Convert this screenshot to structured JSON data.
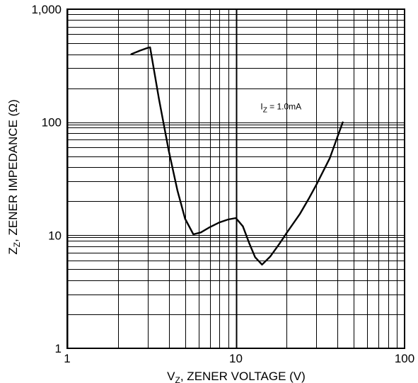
{
  "chart_data": {
    "type": "line",
    "x_scale": "log",
    "y_scale": "log",
    "xlim": [
      1,
      100
    ],
    "ylim": [
      1,
      1000
    ],
    "grid": true,
    "x_ticks": [
      {
        "value": 1,
        "label": "1"
      },
      {
        "value": 10,
        "label": "10"
      },
      {
        "value": 100,
        "label": "100"
      }
    ],
    "y_ticks": [
      {
        "value": 1,
        "label": "1"
      },
      {
        "value": 10,
        "label": "10"
      },
      {
        "value": 100,
        "label": "100"
      },
      {
        "value": 1000,
        "label": "1,000"
      }
    ],
    "xlabel": {
      "pre": "V",
      "sub": "Z",
      "post": ", ZENER VOLTAGE (V)"
    },
    "ylabel": {
      "pre": "Z",
      "sub": "Z",
      "post": ", ZENER IMPEDANCE (Ω)"
    },
    "annotation": {
      "pre": "I",
      "sub": "Z",
      "post": " = 1.0mA",
      "x": 14,
      "y": 130
    },
    "series": [
      {
        "x": [
          2.4,
          2.7,
          3.0,
          3.1,
          3.5,
          4.0,
          4.5,
          5.0,
          5.6,
          6.2,
          7.0,
          8.0,
          9.0,
          10.0,
          11.0,
          12.0,
          13.0,
          14.3,
          16.0,
          18.0,
          20.0,
          24.0,
          27.0,
          30.0,
          36.0,
          43.0
        ],
        "y": [
          400,
          430,
          455,
          460,
          160,
          56,
          25,
          14,
          10.2,
          10.6,
          11.8,
          13.0,
          13.8,
          14.2,
          12.0,
          8.5,
          6.4,
          5.5,
          6.5,
          8.3,
          10.5,
          15.5,
          21.0,
          28.0,
          48.0,
          100.0
        ]
      }
    ]
  }
}
